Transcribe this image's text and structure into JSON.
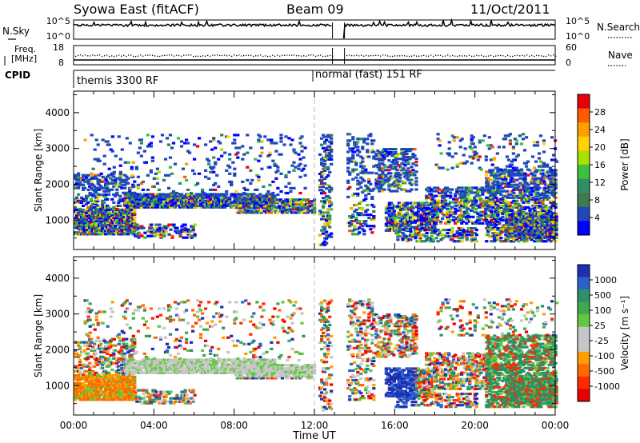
{
  "header": {
    "title": "Syowa East (fitACF)",
    "beam": "Beam 09",
    "date": "11/Oct/2011"
  },
  "top_panels": {
    "nsky_label": "N.Sky",
    "nsky_ticks": [
      "10^5",
      "10^0"
    ],
    "nsearch_label": "N.Search",
    "nsearch_ticks": [
      "10^5",
      "10^0"
    ],
    "freq_label_1": "Freq.",
    "freq_label_2": "[MHz]",
    "freq_ticks": [
      "18",
      "8"
    ],
    "nave_label": "Nave",
    "nave_ticks": [
      "60",
      "0"
    ],
    "cpid_label": "CPID",
    "modes": [
      "themis 3300 RF",
      "normal (fast) 151 RF"
    ]
  },
  "chart_data": [
    {
      "type": "heatmap",
      "name": "power",
      "ylabel": "Slant Range [km]",
      "ylim": [
        180,
        4600
      ],
      "yticks": [
        1000,
        2000,
        3000,
        4000
      ],
      "xlim": [
        0,
        24
      ],
      "colorbar": {
        "label": "Power [dB]",
        "ticks": [
          "28",
          "24",
          "20",
          "16",
          "12",
          "8",
          "4"
        ],
        "colors": [
          "#e8000b",
          "#ff5a00",
          "#ff9e00",
          "#ffd200",
          "#a8e000",
          "#3cc13c",
          "#2f8f66",
          "#3d7a50",
          "#1f48b8",
          "#0000ff"
        ]
      }
    },
    {
      "type": "heatmap",
      "name": "velocity",
      "ylabel": "Slant Range [km]",
      "ylim": [
        180,
        4600
      ],
      "yticks": [
        1000,
        2000,
        3000,
        4000
      ],
      "xlim": [
        0,
        24
      ],
      "colorbar": {
        "label": "Velocity [m s⁻¹]",
        "ticks": [
          "1000",
          "500",
          "100",
          "25",
          "-25",
          "-100",
          "-500",
          "-1000"
        ],
        "colors": [
          "#1c2fb5",
          "#2a62c8",
          "#2f8f66",
          "#40a850",
          "#62c840",
          "#c6c6c6",
          "#c6c6c6",
          "#ff9e00",
          "#ff6a00",
          "#ff2a00",
          "#e80000"
        ]
      }
    }
  ],
  "xaxis": {
    "ticks": [
      "00:00",
      "04:00",
      "08:00",
      "12:00",
      "16:00",
      "20:00",
      "00:00"
    ],
    "label": "Time UT"
  }
}
